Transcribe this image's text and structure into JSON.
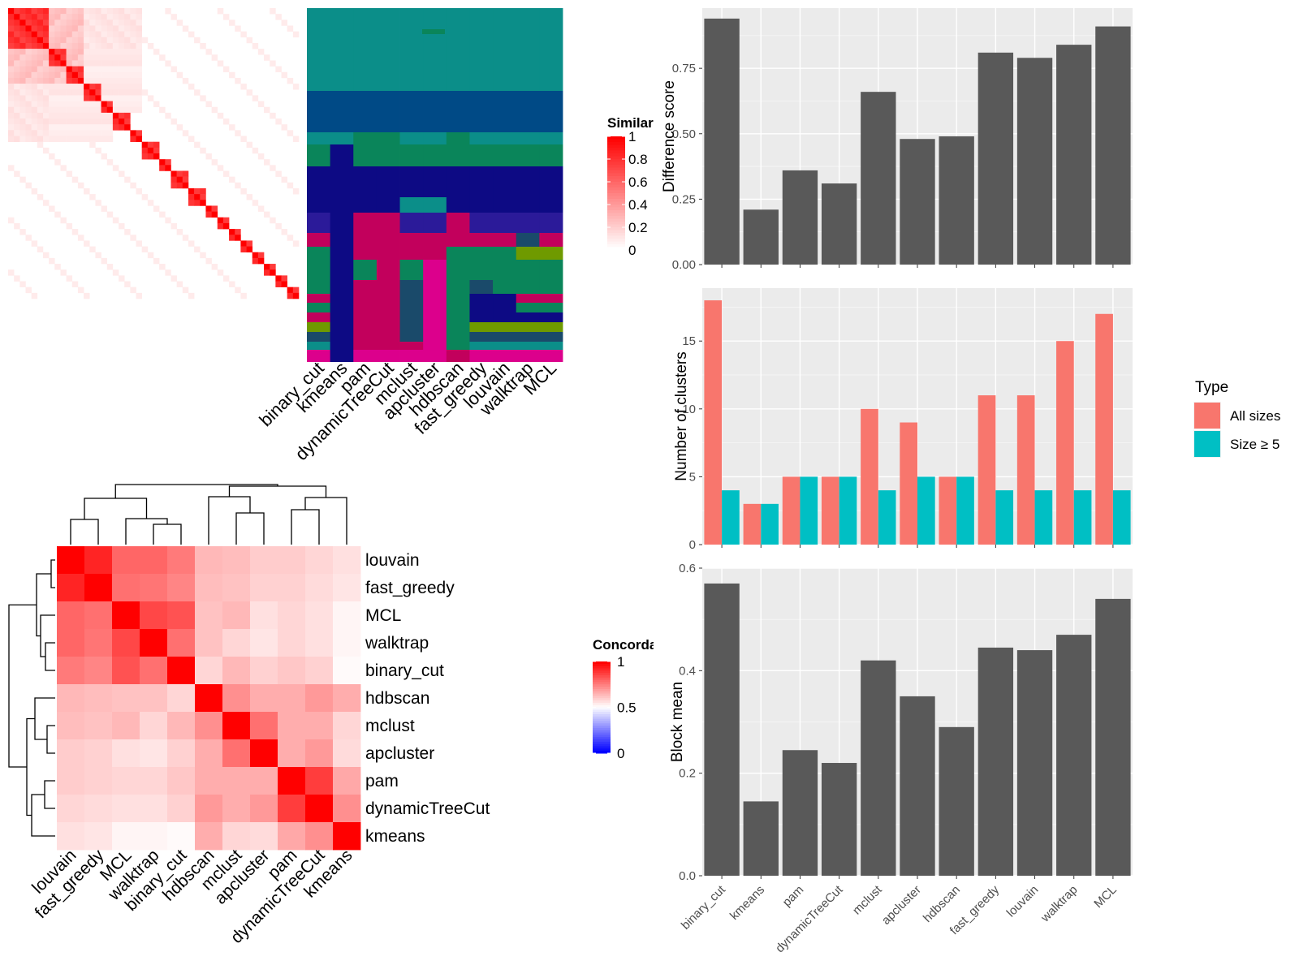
{
  "methods_top": [
    "binary_cut",
    "kmeans",
    "pam",
    "dynamicTreeCut",
    "mclust",
    "apcluster",
    "hdbscan",
    "fast_greedy",
    "louvain",
    "walktrap",
    "MCL"
  ],
  "chart_data": [
    {
      "type": "heatmap",
      "panel": "similarity",
      "legend_title": "Similarity",
      "legend_ticks": [
        "1",
        "0.8",
        "0.6",
        "0.4",
        "0.2",
        "0"
      ],
      "colors": {
        "low": "#ffffff",
        "high": "#ff0000"
      },
      "n_items": 50
    },
    {
      "type": "heatmap",
      "panel": "cluster_assignments",
      "columns": [
        "binary_cut",
        "kmeans",
        "pam",
        "dynamicTreeCut",
        "mclust",
        "apcluster",
        "hdbscan",
        "fast_greedy",
        "louvain",
        "walktrap",
        "MCL"
      ],
      "cluster_colors": [
        "#0b8e89",
        "#004a86",
        "#0a855a",
        "#0d0a84",
        "#c2005c",
        "#2b1a99",
        "#dc008c",
        "#6f9a00",
        "#1a4a6a"
      ]
    },
    {
      "type": "heatmap",
      "panel": "concordance",
      "legend_title": "Concordance",
      "legend_ticks": [
        "1",
        "0.5",
        "0"
      ],
      "colors": {
        "low": "#0000ff",
        "mid": "#ffffff",
        "high": "#ff0000"
      },
      "order": [
        "louvain",
        "fast_greedy",
        "MCL",
        "walktrap",
        "binary_cut",
        "hdbscan",
        "mclust",
        "apcluster",
        "pam",
        "dynamicTreeCut",
        "kmeans"
      ],
      "values": [
        [
          1.0,
          0.93,
          0.8,
          0.8,
          0.76,
          0.64,
          0.63,
          0.6,
          0.6,
          0.58,
          0.56
        ],
        [
          0.93,
          1.0,
          0.78,
          0.77,
          0.74,
          0.63,
          0.62,
          0.59,
          0.59,
          0.57,
          0.55
        ],
        [
          0.8,
          0.78,
          1.0,
          0.86,
          0.84,
          0.62,
          0.64,
          0.56,
          0.58,
          0.56,
          0.52
        ],
        [
          0.8,
          0.77,
          0.86,
          1.0,
          0.78,
          0.62,
          0.58,
          0.55,
          0.58,
          0.56,
          0.52
        ],
        [
          0.76,
          0.74,
          0.84,
          0.78,
          1.0,
          0.58,
          0.64,
          0.59,
          0.61,
          0.59,
          0.51
        ],
        [
          0.64,
          0.63,
          0.62,
          0.62,
          0.58,
          1.0,
          0.72,
          0.66,
          0.66,
          0.7,
          0.66
        ],
        [
          0.63,
          0.62,
          0.64,
          0.58,
          0.64,
          0.72,
          1.0,
          0.78,
          0.66,
          0.66,
          0.58
        ],
        [
          0.6,
          0.59,
          0.56,
          0.55,
          0.59,
          0.66,
          0.78,
          1.0,
          0.66,
          0.7,
          0.57
        ],
        [
          0.6,
          0.59,
          0.58,
          0.58,
          0.61,
          0.66,
          0.66,
          0.66,
          1.0,
          0.88,
          0.67
        ],
        [
          0.58,
          0.57,
          0.56,
          0.56,
          0.59,
          0.7,
          0.66,
          0.7,
          0.88,
          1.0,
          0.72
        ],
        [
          0.56,
          0.55,
          0.52,
          0.52,
          0.51,
          0.66,
          0.58,
          0.57,
          0.67,
          0.72,
          1.0
        ]
      ]
    },
    {
      "type": "bar",
      "panel": "difference",
      "categories": [
        "binary_cut",
        "kmeans",
        "pam",
        "dynamicTreeCut",
        "mclust",
        "apcluster",
        "hdbscan",
        "fast_greedy",
        "louvain",
        "walktrap",
        "MCL"
      ],
      "values": [
        0.94,
        0.21,
        0.36,
        0.31,
        0.66,
        0.48,
        0.49,
        0.81,
        0.79,
        0.84,
        0.91
      ],
      "ylabel": "Difference score",
      "ylim": [
        0,
        0.98
      ],
      "yticks": [
        "0.00",
        "0.25",
        "0.50",
        "0.75"
      ],
      "fill": "#595959"
    },
    {
      "type": "bar",
      "panel": "clusters",
      "categories": [
        "binary_cut",
        "kmeans",
        "pam",
        "dynamicTreeCut",
        "mclust",
        "apcluster",
        "hdbscan",
        "fast_greedy",
        "louvain",
        "walktrap",
        "MCL"
      ],
      "series": [
        {
          "name": "All sizes",
          "values": [
            18,
            3,
            5,
            5,
            10,
            9,
            5,
            11,
            11,
            15,
            17
          ],
          "color": "#f8766d"
        },
        {
          "name": "Size ≥ 5",
          "values": [
            4,
            3,
            5,
            5,
            4,
            5,
            5,
            4,
            4,
            4,
            4
          ],
          "color": "#00bfc4"
        }
      ],
      "ylabel": "Number of clusters",
      "legend_title": "Type",
      "ylim": [
        0,
        18.9
      ],
      "yticks": [
        "0",
        "5",
        "10",
        "15"
      ]
    },
    {
      "type": "bar",
      "panel": "blockmean",
      "categories": [
        "binary_cut",
        "kmeans",
        "pam",
        "dynamicTreeCut",
        "mclust",
        "apcluster",
        "hdbscan",
        "fast_greedy",
        "louvain",
        "walktrap",
        "MCL"
      ],
      "values": [
        0.57,
        0.145,
        0.245,
        0.22,
        0.42,
        0.35,
        0.29,
        0.445,
        0.44,
        0.47,
        0.54
      ],
      "ylabel": "Block mean",
      "ylim": [
        0,
        0.6
      ],
      "yticks": [
        "0.0",
        "0.2",
        "0.4",
        "0.6"
      ],
      "fill": "#595959"
    }
  ]
}
